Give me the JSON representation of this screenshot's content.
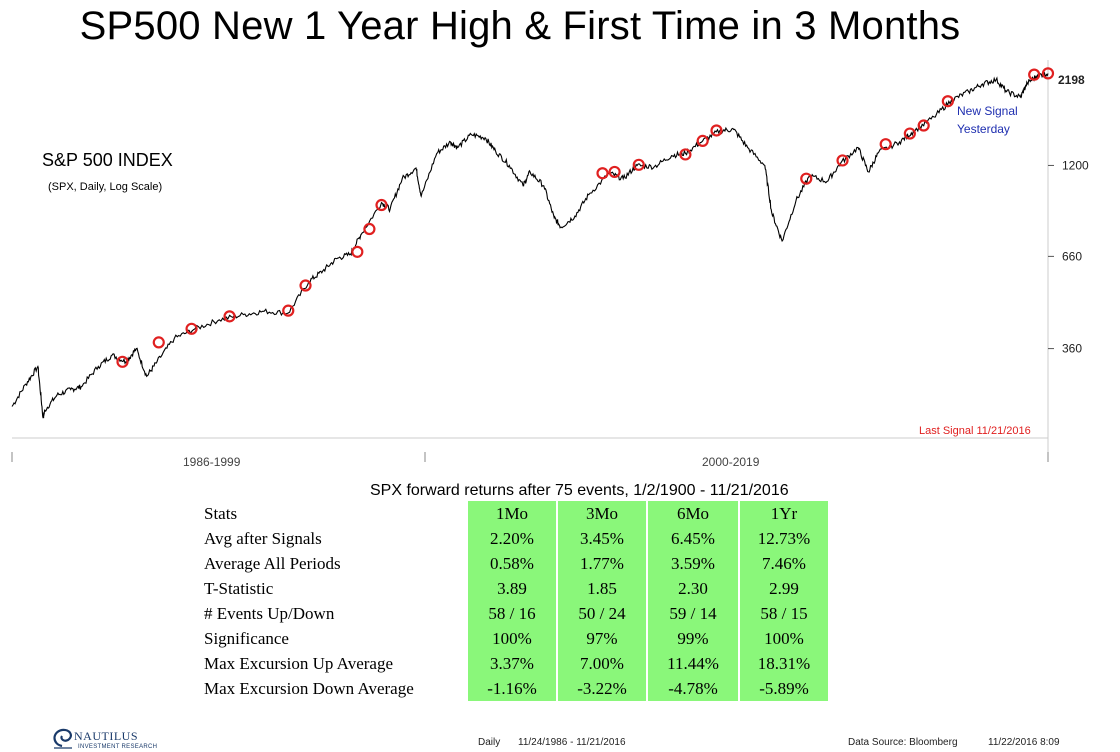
{
  "title": "SP500 New 1 Year High & First Time in 3 Months",
  "last_price": "2198",
  "index_name": "S&P 500 INDEX",
  "index_sub": "(SPX, Daily, Log Scale)",
  "new_signal": "New Signal Yesterday",
  "last_signal": "Last Signal 11/21/2016",
  "eras": [
    "1986-1999",
    "2000-2019"
  ],
  "table": {
    "title": "SPX forward returns after 75 events, 1/2/1900 - 11/21/2016",
    "columns": [
      "Stats",
      "1Mo",
      "3Mo",
      "6Mo",
      "1Yr"
    ],
    "rows": [
      {
        "label": "Avg after Signals",
        "values": [
          "2.20%",
          "3.45%",
          "6.45%",
          "12.73%"
        ]
      },
      {
        "label": "Average All Periods",
        "values": [
          "0.58%",
          "1.77%",
          "3.59%",
          "7.46%"
        ]
      },
      {
        "label": "T-Statistic",
        "values": [
          "3.89",
          "1.85",
          "2.30",
          "2.99"
        ]
      },
      {
        "label": "# Events Up/Down",
        "values": [
          "58 / 16",
          "50 / 24",
          "59 / 14",
          "58 / 15"
        ]
      },
      {
        "label": "Significance",
        "values": [
          "100%",
          "97%",
          "99%",
          "100%"
        ]
      },
      {
        "label": "Max Excursion Up Average",
        "values": [
          "3.37%",
          "7.00%",
          "11.44%",
          "18.31%"
        ]
      },
      {
        "label": "Max Excursion Down Average",
        "values": [
          "-1.16%",
          "-3.22%",
          "-4.78%",
          "-5.89%"
        ]
      }
    ]
  },
  "footer": {
    "logo_name": "NAUTILUS",
    "logo_tag": "INVESTMENT RESEARCH",
    "frequency": "Daily",
    "range": "11/24/1986 - 11/21/2016",
    "source": "Data Source: Bloomberg",
    "timestamp": "11/22/2016 8:09"
  },
  "colors": {
    "line": "#000000",
    "signal": "#e02020",
    "table_fill": "#8af77a",
    "new_signal_text": "#1f2fb0"
  },
  "chart_data": {
    "type": "line",
    "title": "S&P 500 INDEX",
    "scale": "log",
    "ylim": [
      200,
      2400
    ],
    "y_ticks": [
      360,
      660,
      1200
    ],
    "xlim": [
      1986.9,
      2016.9
    ],
    "grid": false,
    "series": [
      {
        "x": [
          1986.9,
          1987.3,
          1987.65,
          1987.8,
          1987.85,
          1988.2,
          1988.6,
          1988.9,
          1989.4,
          1989.8,
          1990.2,
          1990.5,
          1990.8,
          1991.1,
          1991.6,
          1992.2,
          1992.9,
          1993.6,
          1994.2,
          1994.9,
          1995.5,
          1995.9,
          1996.3,
          1996.7,
          1997.0,
          1997.6,
          1997.85,
          1998.2,
          1998.6,
          1998.75,
          1999.2,
          1999.6,
          1999.8,
          2000.2,
          2000.6,
          2000.9,
          2001.3,
          2001.7,
          2001.9,
          2002.3,
          2002.6,
          2002.8,
          2003.2,
          2003.6,
          2004.2,
          2004.6,
          2005.0,
          2005.5,
          2006.0,
          2006.4,
          2006.9,
          2007.4,
          2007.8,
          2008.2,
          2008.7,
          2008.9,
          2009.2,
          2009.6,
          2010.0,
          2010.5,
          2010.9,
          2011.4,
          2011.7,
          2012.0,
          2012.6,
          2013.0,
          2013.6,
          2014.1,
          2014.6,
          2015.0,
          2015.4,
          2015.7,
          2016.1,
          2016.3,
          2016.6,
          2016.9
        ],
        "y": [
          246,
          285,
          320,
          228,
          240,
          265,
          275,
          280,
          320,
          345,
          330,
          360,
          300,
          330,
          385,
          410,
          435,
          450,
          460,
          455,
          560,
          600,
          650,
          670,
          760,
          940,
          900,
          1100,
          1180,
          980,
          1300,
          1400,
          1350,
          1470,
          1440,
          1320,
          1200,
          1050,
          1150,
          1050,
          850,
          800,
          860,
          990,
          1140,
          1100,
          1200,
          1190,
          1280,
          1300,
          1410,
          1510,
          1520,
          1350,
          1200,
          880,
          730,
          950,
          1120,
          1080,
          1220,
          1350,
          1150,
          1310,
          1400,
          1500,
          1650,
          1840,
          1950,
          2050,
          2110,
          1950,
          1880,
          2060,
          2170,
          2198
        ]
      }
    ],
    "signals": [
      {
        "x": 1990.1,
        "y": 330
      },
      {
        "x": 1991.15,
        "y": 375
      },
      {
        "x": 1992.1,
        "y": 410
      },
      {
        "x": 1993.2,
        "y": 445
      },
      {
        "x": 1994.9,
        "y": 462
      },
      {
        "x": 1995.4,
        "y": 545
      },
      {
        "x": 1996.9,
        "y": 680
      },
      {
        "x": 1997.25,
        "y": 790
      },
      {
        "x": 1997.6,
        "y": 925
      },
      {
        "x": 2004.0,
        "y": 1140
      },
      {
        "x": 2004.35,
        "y": 1150
      },
      {
        "x": 2005.05,
        "y": 1205
      },
      {
        "x": 2006.4,
        "y": 1290
      },
      {
        "x": 2006.9,
        "y": 1410
      },
      {
        "x": 2007.3,
        "y": 1510
      },
      {
        "x": 2009.9,
        "y": 1100
      },
      {
        "x": 2010.95,
        "y": 1240
      },
      {
        "x": 2012.2,
        "y": 1380
      },
      {
        "x": 2012.9,
        "y": 1480
      },
      {
        "x": 2013.3,
        "y": 1560
      },
      {
        "x": 2014.0,
        "y": 1830
      },
      {
        "x": 2016.5,
        "y": 2180
      },
      {
        "x": 2016.9,
        "y": 2198
      }
    ]
  }
}
